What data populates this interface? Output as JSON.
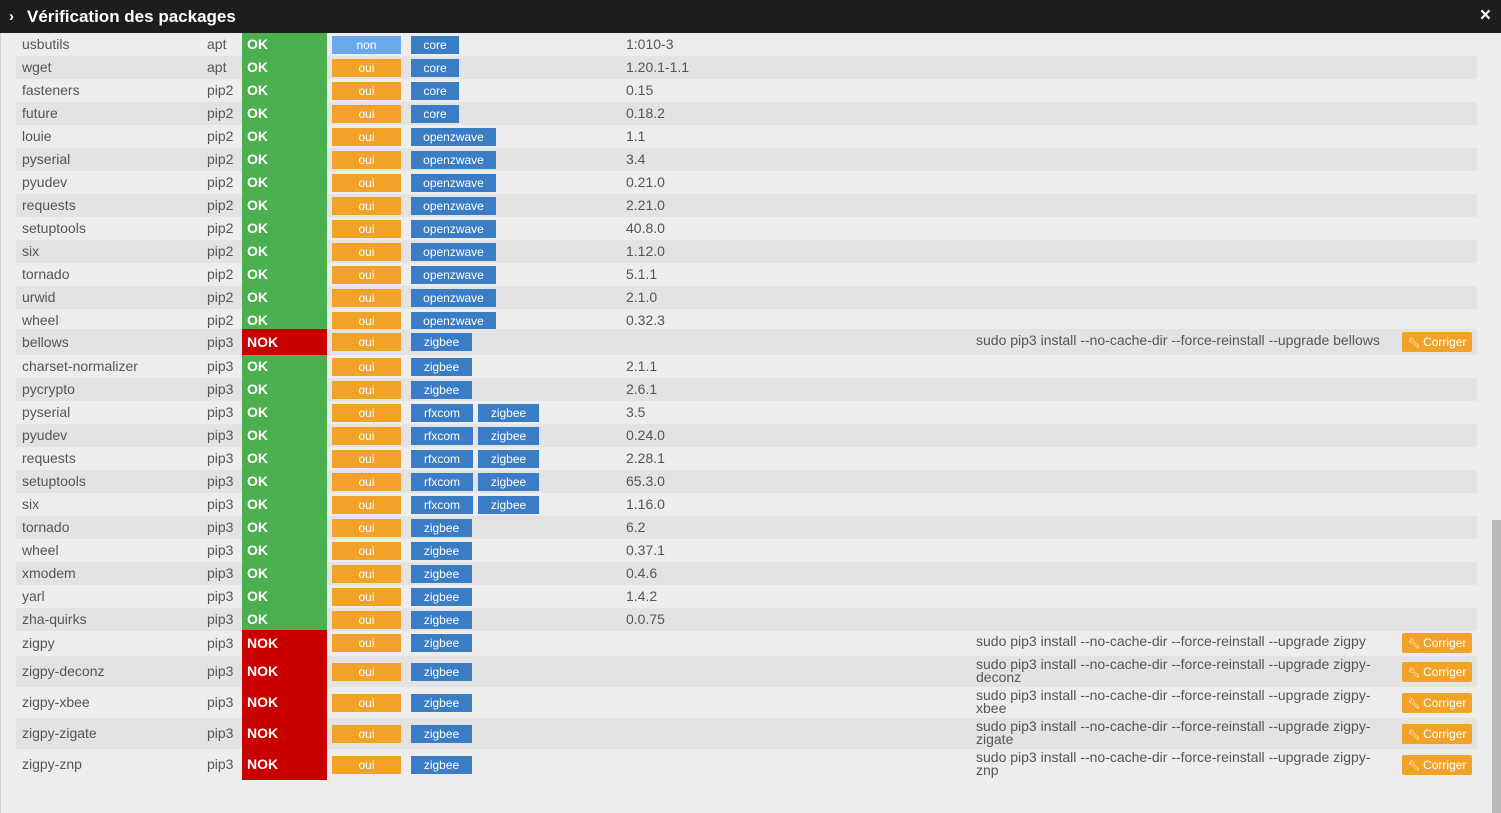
{
  "modal": {
    "title": "Vérification des packages",
    "close_icon": "×",
    "chevron_icon": "›"
  },
  "fix_button_label": "Corriger",
  "colors": {
    "ok": "#4caf50",
    "nok": "#c80000",
    "oui": "#f0a229",
    "non": "#6aaaea",
    "plugin": "#3b7dc4"
  },
  "rows": [
    {
      "name": "usbutils",
      "type": "apt",
      "status": "OK",
      "required": "non",
      "plugins": [
        "core"
      ],
      "version": "1:010-3",
      "fix": ""
    },
    {
      "name": "wget",
      "type": "apt",
      "status": "OK",
      "required": "oui",
      "plugins": [
        "core"
      ],
      "version": "1.20.1-1.1",
      "fix": ""
    },
    {
      "name": "fasteners",
      "type": "pip2",
      "status": "OK",
      "required": "oui",
      "plugins": [
        "core"
      ],
      "version": "0.15",
      "fix": ""
    },
    {
      "name": "future",
      "type": "pip2",
      "status": "OK",
      "required": "oui",
      "plugins": [
        "core"
      ],
      "version": "0.18.2",
      "fix": ""
    },
    {
      "name": "louie",
      "type": "pip2",
      "status": "OK",
      "required": "oui",
      "plugins": [
        "openzwave"
      ],
      "version": "1.1",
      "fix": ""
    },
    {
      "name": "pyserial",
      "type": "pip2",
      "status": "OK",
      "required": "oui",
      "plugins": [
        "openzwave"
      ],
      "version": "3.4",
      "fix": ""
    },
    {
      "name": "pyudev",
      "type": "pip2",
      "status": "OK",
      "required": "oui",
      "plugins": [
        "openzwave"
      ],
      "version": "0.21.0",
      "fix": ""
    },
    {
      "name": "requests",
      "type": "pip2",
      "status": "OK",
      "required": "oui",
      "plugins": [
        "openzwave"
      ],
      "version": "2.21.0",
      "fix": ""
    },
    {
      "name": "setuptools",
      "type": "pip2",
      "status": "OK",
      "required": "oui",
      "plugins": [
        "openzwave"
      ],
      "version": "40.8.0",
      "fix": ""
    },
    {
      "name": "six",
      "type": "pip2",
      "status": "OK",
      "required": "oui",
      "plugins": [
        "openzwave"
      ],
      "version": "1.12.0",
      "fix": ""
    },
    {
      "name": "tornado",
      "type": "pip2",
      "status": "OK",
      "required": "oui",
      "plugins": [
        "openzwave"
      ],
      "version": "5.1.1",
      "fix": ""
    },
    {
      "name": "urwid",
      "type": "pip2",
      "status": "OK",
      "required": "oui",
      "plugins": [
        "openzwave"
      ],
      "version": "2.1.0",
      "fix": ""
    },
    {
      "name": "wheel",
      "type": "pip2",
      "status": "OK",
      "required": "oui",
      "plugins": [
        "openzwave"
      ],
      "version": "0.32.3",
      "fix": ""
    },
    {
      "name": "bellows",
      "type": "pip3",
      "status": "NOK",
      "required": "oui",
      "plugins": [
        "zigbee"
      ],
      "version": "",
      "fix": "sudo pip3 install --no-cache-dir --force-reinstall --upgrade bellows"
    },
    {
      "name": "charset-normalizer",
      "type": "pip3",
      "status": "OK",
      "required": "oui",
      "plugins": [
        "zigbee"
      ],
      "version": "2.1.1",
      "fix": ""
    },
    {
      "name": "pycrypto",
      "type": "pip3",
      "status": "OK",
      "required": "oui",
      "plugins": [
        "zigbee"
      ],
      "version": "2.6.1",
      "fix": ""
    },
    {
      "name": "pyserial",
      "type": "pip3",
      "status": "OK",
      "required": "oui",
      "plugins": [
        "rfxcom",
        "zigbee"
      ],
      "version": "3.5",
      "fix": ""
    },
    {
      "name": "pyudev",
      "type": "pip3",
      "status": "OK",
      "required": "oui",
      "plugins": [
        "rfxcom",
        "zigbee"
      ],
      "version": "0.24.0",
      "fix": ""
    },
    {
      "name": "requests",
      "type": "pip3",
      "status": "OK",
      "required": "oui",
      "plugins": [
        "rfxcom",
        "zigbee"
      ],
      "version": "2.28.1",
      "fix": ""
    },
    {
      "name": "setuptools",
      "type": "pip3",
      "status": "OK",
      "required": "oui",
      "plugins": [
        "rfxcom",
        "zigbee"
      ],
      "version": "65.3.0",
      "fix": ""
    },
    {
      "name": "six",
      "type": "pip3",
      "status": "OK",
      "required": "oui",
      "plugins": [
        "rfxcom",
        "zigbee"
      ],
      "version": "1.16.0",
      "fix": ""
    },
    {
      "name": "tornado",
      "type": "pip3",
      "status": "OK",
      "required": "oui",
      "plugins": [
        "zigbee"
      ],
      "version": "6.2",
      "fix": ""
    },
    {
      "name": "wheel",
      "type": "pip3",
      "status": "OK",
      "required": "oui",
      "plugins": [
        "zigbee"
      ],
      "version": "0.37.1",
      "fix": ""
    },
    {
      "name": "xmodem",
      "type": "pip3",
      "status": "OK",
      "required": "oui",
      "plugins": [
        "zigbee"
      ],
      "version": "0.4.6",
      "fix": ""
    },
    {
      "name": "yarl",
      "type": "pip3",
      "status": "OK",
      "required": "oui",
      "plugins": [
        "zigbee"
      ],
      "version": "1.4.2",
      "fix": ""
    },
    {
      "name": "zha-quirks",
      "type": "pip3",
      "status": "OK",
      "required": "oui",
      "plugins": [
        "zigbee"
      ],
      "version": "0.0.75",
      "fix": ""
    },
    {
      "name": "zigpy",
      "type": "pip3",
      "status": "NOK",
      "required": "oui",
      "plugins": [
        "zigbee"
      ],
      "version": "",
      "fix": "sudo pip3 install --no-cache-dir --force-reinstall --upgrade zigpy"
    },
    {
      "name": "zigpy-deconz",
      "type": "pip3",
      "status": "NOK",
      "required": "oui",
      "plugins": [
        "zigbee"
      ],
      "version": "",
      "fix": "sudo pip3 install --no-cache-dir --force-reinstall --upgrade zigpy-deconz"
    },
    {
      "name": "zigpy-xbee",
      "type": "pip3",
      "status": "NOK",
      "required": "oui",
      "plugins": [
        "zigbee"
      ],
      "version": "",
      "fix": "sudo pip3 install --no-cache-dir --force-reinstall --upgrade zigpy-xbee"
    },
    {
      "name": "zigpy-zigate",
      "type": "pip3",
      "status": "NOK",
      "required": "oui",
      "plugins": [
        "zigbee"
      ],
      "version": "",
      "fix": "sudo pip3 install --no-cache-dir --force-reinstall --upgrade zigpy-zigate"
    },
    {
      "name": "zigpy-znp",
      "type": "pip3",
      "status": "NOK",
      "required": "oui",
      "plugins": [
        "zigbee"
      ],
      "version": "",
      "fix": "sudo pip3 install --no-cache-dir --force-reinstall --upgrade zigpy-znp"
    }
  ]
}
